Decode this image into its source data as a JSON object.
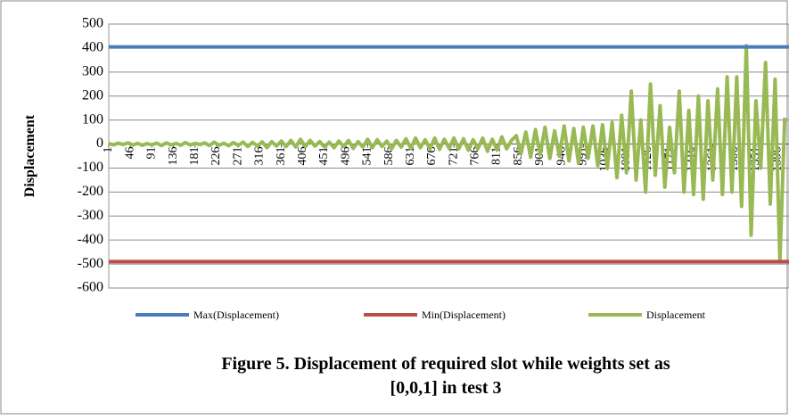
{
  "chart_data": {
    "type": "line",
    "y_label": "Displacement",
    "caption": [
      "Figure 5. Displacement of required slot while weights set as",
      "[0,0,1] in test 3"
    ],
    "xlim": [
      1,
      1420
    ],
    "xticks": [
      1,
      46,
      91,
      136,
      181,
      226,
      271,
      316,
      361,
      406,
      451,
      496,
      541,
      586,
      631,
      676,
      721,
      766,
      811,
      856,
      901,
      946,
      991,
      1036,
      1081,
      1126,
      1171,
      1216,
      1261,
      1306,
      1351,
      1396
    ],
    "ylim": [
      -600,
      500
    ],
    "yticks": [
      -600,
      -500,
      -400,
      -300,
      -200,
      -100,
      0,
      100,
      200,
      300,
      400,
      500
    ],
    "grid": true,
    "series": [
      {
        "name": "Max(Displacement)",
        "color": "#4a7ebb",
        "x": [
          1,
          1420
        ],
        "values": [
          405,
          405
        ]
      },
      {
        "name": "Min(Displacement)",
        "color": "#be4b48",
        "x": [
          1,
          1420
        ],
        "values": [
          -490,
          -490
        ]
      },
      {
        "name": "Displacement",
        "color": "#98b954",
        "x": [
          1,
          11,
          21,
          31,
          41,
          51,
          61,
          71,
          81,
          91,
          101,
          111,
          121,
          131,
          141,
          151,
          161,
          171,
          181,
          191,
          201,
          211,
          221,
          231,
          241,
          251,
          261,
          271,
          281,
          291,
          301,
          311,
          321,
          331,
          341,
          351,
          361,
          371,
          381,
          391,
          401,
          411,
          421,
          431,
          441,
          451,
          461,
          471,
          481,
          491,
          501,
          511,
          521,
          531,
          541,
          551,
          561,
          571,
          581,
          591,
          601,
          611,
          621,
          631,
          641,
          651,
          661,
          671,
          681,
          691,
          701,
          711,
          721,
          731,
          741,
          751,
          761,
          771,
          781,
          791,
          801,
          811,
          821,
          831,
          841,
          851,
          861,
          871,
          881,
          891,
          901,
          911,
          921,
          931,
          941,
          951,
          961,
          971,
          981,
          991,
          1001,
          1011,
          1021,
          1031,
          1041,
          1051,
          1061,
          1071,
          1081,
          1091,
          1101,
          1111,
          1121,
          1131,
          1141,
          1151,
          1161,
          1171,
          1181,
          1191,
          1201,
          1211,
          1221,
          1231,
          1241,
          1251,
          1261,
          1271,
          1281,
          1291,
          1301,
          1311,
          1321,
          1331,
          1341,
          1351,
          1361,
          1371,
          1381,
          1391,
          1401,
          1411
        ],
        "values": [
          2,
          -3,
          4,
          -2,
          5,
          -4,
          3,
          -5,
          2,
          -3,
          4,
          -6,
          5,
          -4,
          3,
          -5,
          6,
          -4,
          3,
          -2,
          5,
          -6,
          8,
          -5,
          4,
          -7,
          6,
          -5,
          8,
          -10,
          7,
          -8,
          9,
          -15,
          10,
          -8,
          12,
          -10,
          15,
          -12,
          20,
          -10,
          15,
          -8,
          10,
          -12,
          8,
          -15,
          12,
          -10,
          15,
          -18,
          10,
          -12,
          20,
          -15,
          18,
          -10,
          12,
          -20,
          15,
          -12,
          22,
          -18,
          25,
          -15,
          18,
          -20,
          25,
          -22,
          20,
          -18,
          25,
          -20,
          22,
          -25,
          18,
          -20,
          25,
          -30,
          20,
          -25,
          30,
          -20,
          15,
          35,
          -40,
          50,
          -55,
          60,
          -45,
          70,
          -60,
          55,
          -50,
          75,
          -70,
          65,
          -80,
          70,
          -60,
          75,
          -90,
          80,
          -100,
          90,
          -140,
          120,
          -120,
          220,
          -150,
          100,
          -200,
          250,
          -130,
          160,
          -180,
          70,
          -120,
          220,
          -200,
          140,
          -210,
          200,
          -230,
          180,
          -150,
          230,
          -210,
          280,
          -200,
          280,
          -260,
          410,
          -380,
          180,
          -100,
          340,
          -250,
          270,
          -490,
          110
        ]
      }
    ]
  }
}
